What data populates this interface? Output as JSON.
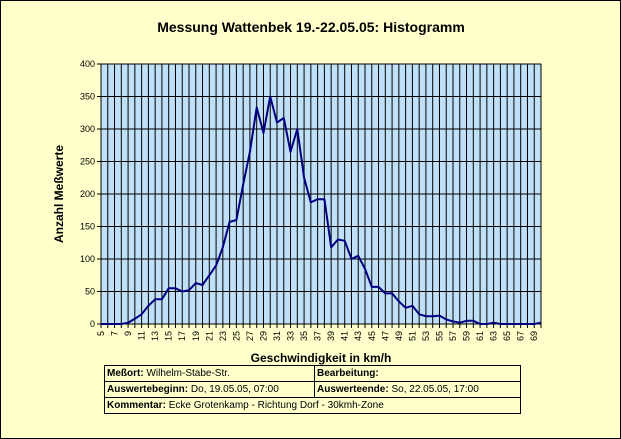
{
  "chart_data": {
    "type": "line",
    "title": "Messung Wattenbek 19.-22.05.05: Histogramm",
    "xlabel": "Geschwindigkeit in km/h",
    "ylabel": "Anzahl Meßwerte",
    "ylim": [
      0,
      400
    ],
    "yticks": [
      0,
      50,
      100,
      150,
      200,
      250,
      300,
      350,
      400
    ],
    "xlim": [
      5,
      70
    ],
    "xtick_labels": [
      "5",
      "7",
      "9",
      "11",
      "13",
      "15",
      "17",
      "19",
      "21",
      "23",
      "25",
      "27",
      "29",
      "31",
      "33",
      "35",
      "37",
      "39",
      "41",
      "43",
      "45",
      "47",
      "49",
      "51",
      "53",
      "55",
      "57",
      "59",
      "61",
      "63",
      "65",
      "67",
      "69"
    ],
    "grid": true,
    "line_color": "#000080",
    "plot_bg": "#c0e0f8",
    "series": [
      {
        "x": [
          5,
          6,
          7,
          8,
          9,
          10,
          11,
          12,
          13,
          14,
          15,
          16,
          17,
          18,
          19,
          20,
          21,
          22,
          23,
          24,
          25,
          26,
          27,
          28,
          29,
          30,
          31,
          32,
          33,
          34,
          35,
          36,
          37,
          38,
          39,
          40,
          41,
          42,
          43,
          44,
          45,
          46,
          47,
          48,
          49,
          50,
          51,
          52,
          53,
          54,
          55,
          56,
          57,
          58,
          59,
          60,
          61,
          62,
          63,
          64,
          65,
          66,
          67,
          68,
          69,
          70
        ],
        "values": [
          0,
          0,
          0,
          0,
          2,
          8,
          15,
          28,
          38,
          38,
          55,
          55,
          50,
          52,
          63,
          60,
          75,
          90,
          118,
          157,
          160,
          215,
          265,
          333,
          294,
          350,
          310,
          317,
          265,
          300,
          225,
          187,
          192,
          192,
          118,
          130,
          128,
          100,
          105,
          85,
          57,
          57,
          47,
          47,
          35,
          25,
          28,
          15,
          12,
          12,
          13,
          7,
          4,
          2,
          5,
          5,
          0,
          0,
          2,
          0,
          0,
          0,
          0,
          0,
          0,
          2
        ]
      }
    ]
  },
  "info": {
    "messort_label": "Meßort:",
    "messort_value": "Wilhelm-Stabe-Str.",
    "bearbeitung_label": "Bearbeitung:",
    "bearbeitung_value": "",
    "beginn_label": "Auswertebeginn:",
    "beginn_value": "Do, 19.05.05, 07:00",
    "ende_label": "Auswerteende:",
    "ende_value": "So, 22.05.05, 17:00",
    "kommentar_label": "Kommentar:",
    "kommentar_value": "Ecke Grotenkamp - Richtung Dorf - 30kmh-Zone"
  }
}
